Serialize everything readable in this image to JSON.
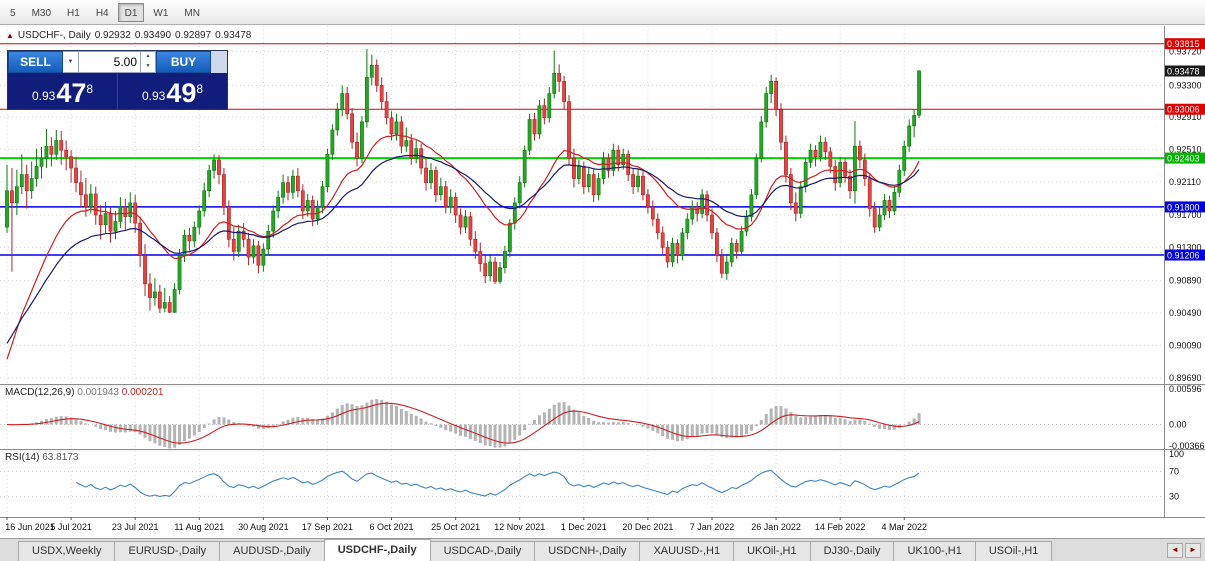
{
  "toolbar": {
    "timeframes": [
      {
        "label": "5",
        "active": false
      },
      {
        "label": "M30",
        "active": false
      },
      {
        "label": "H1",
        "active": false
      },
      {
        "label": "H4",
        "active": false
      },
      {
        "label": "D1",
        "active": true
      },
      {
        "label": "W1",
        "active": false
      },
      {
        "label": "MN",
        "active": false
      }
    ]
  },
  "chart_header": {
    "title": "USDCHF-, Daily",
    "open": "0.92932",
    "high": "0.93490",
    "low": "0.92897",
    "close": "0.93478"
  },
  "trade_panel": {
    "sell_label": "SELL",
    "buy_label": "BUY",
    "volume": "5.00",
    "bid": {
      "small": "0.93",
      "big": "47",
      "sup": "8"
    },
    "ask": {
      "small": "0.93",
      "big": "49",
      "sup": "8"
    }
  },
  "chart_data": {
    "type": "candlestick",
    "symbol": "USDCHF-",
    "timeframe": "Daily",
    "ylim": [
      0.8963,
      0.9398
    ],
    "price_ticks": [
      "0.93720",
      "0.93300",
      "0.92910",
      "0.92510",
      "0.92110",
      "0.91700",
      "0.91300",
      "0.90890",
      "0.90490",
      "0.90090",
      "0.89690"
    ],
    "x_labels": [
      "16 Jun 2021",
      "5 Jul 2021",
      "23 Jul 2021",
      "11 Aug 2021",
      "30 Aug 2021",
      "17 Sep 2021",
      "6 Oct 2021",
      "25 Oct 2021",
      "12 Nov 2021",
      "1 Dec 2021",
      "20 Dec 2021",
      "7 Jan 2022",
      "26 Jan 2022",
      "14 Feb 2022",
      "4 Mar 2022"
    ],
    "x_label_step": 13,
    "hlines": [
      {
        "price": 0.93815,
        "label": "0.93815",
        "color": "#e00000",
        "width": 1
      },
      {
        "price": 0.93006,
        "label": "0.93006",
        "color": "#e00000",
        "width": 1
      },
      {
        "price": 0.92403,
        "label": "0.92403",
        "color": "#00d400",
        "width": 2
      },
      {
        "price": 0.918,
        "label": "0.91800",
        "color": "#0000e8",
        "width": 1.5
      },
      {
        "price": 0.91206,
        "label": "0.91206",
        "color": "#0000e8",
        "width": 1.5
      }
    ],
    "current_price": {
      "value": "0.93478",
      "price": 0.93478,
      "tag_color": "#1a1a1a"
    },
    "moving_averages": [
      {
        "period": 20,
        "color": "#cc2020",
        "seed": 0.897
      },
      {
        "period": 34,
        "color": "#1a1a6e",
        "seed": 0.9
      }
    ],
    "macd": {
      "label": "MACD(12,26,9)",
      "value_main": "0.001943",
      "value_signal": "0.000201",
      "scale": [
        "0.00596",
        "0.00",
        "-0.00366"
      ],
      "range": [
        -0.00366,
        0.00596
      ],
      "hist_color": "#b4b4b4",
      "signal_color": "#cc2020"
    },
    "rsi": {
      "label": "RSI(14)",
      "value": "63.8173",
      "scale": [
        "100",
        "70",
        "30"
      ],
      "levels": [
        70,
        30
      ],
      "color": "#3d85c8"
    },
    "colors": {
      "up_fill": "#28a428",
      "up_stroke": "#0d7a0d",
      "down_fill": "#e04545",
      "down_stroke": "#b22222",
      "grid": "#d8d8d8"
    },
    "candles": [
      [
        0.9155,
        0.9232,
        0.9148,
        0.92
      ],
      [
        0.92,
        0.9228,
        0.91,
        0.9185
      ],
      [
        0.9185,
        0.9226,
        0.917,
        0.9205
      ],
      [
        0.9205,
        0.9245,
        0.9196,
        0.922
      ],
      [
        0.922,
        0.9232,
        0.9178,
        0.92
      ],
      [
        0.92,
        0.9236,
        0.919,
        0.9215
      ],
      [
        0.9215,
        0.9252,
        0.9205,
        0.923
      ],
      [
        0.923,
        0.9254,
        0.9215,
        0.924
      ],
      [
        0.924,
        0.9276,
        0.9228,
        0.9255
      ],
      [
        0.9255,
        0.9266,
        0.923,
        0.9245
      ],
      [
        0.9245,
        0.9275,
        0.9238,
        0.9262
      ],
      [
        0.9262,
        0.9274,
        0.9232,
        0.925
      ],
      [
        0.925,
        0.9262,
        0.9225,
        0.9242
      ],
      [
        0.9242,
        0.925,
        0.921,
        0.9228
      ],
      [
        0.9228,
        0.9242,
        0.9198,
        0.921
      ],
      [
        0.921,
        0.9225,
        0.918,
        0.9195
      ],
      [
        0.9195,
        0.9216,
        0.9168,
        0.918
      ],
      [
        0.918,
        0.9208,
        0.9172,
        0.9196
      ],
      [
        0.9196,
        0.9205,
        0.9158,
        0.917
      ],
      [
        0.917,
        0.9182,
        0.914,
        0.9158
      ],
      [
        0.9158,
        0.9186,
        0.9148,
        0.9172
      ],
      [
        0.9172,
        0.918,
        0.9136,
        0.915
      ],
      [
        0.915,
        0.9175,
        0.914,
        0.9162
      ],
      [
        0.9162,
        0.9192,
        0.9154,
        0.918
      ],
      [
        0.918,
        0.919,
        0.9152,
        0.9168
      ],
      [
        0.9168,
        0.9198,
        0.916,
        0.9185
      ],
      [
        0.9185,
        0.9195,
        0.9148,
        0.916
      ],
      [
        0.916,
        0.9168,
        0.9106,
        0.912
      ],
      [
        0.912,
        0.9134,
        0.907,
        0.9085
      ],
      [
        0.9085,
        0.9098,
        0.9052,
        0.9068
      ],
      [
        0.9068,
        0.9092,
        0.9058,
        0.9075
      ],
      [
        0.9075,
        0.9084,
        0.9049,
        0.9055
      ],
      [
        0.9055,
        0.908,
        0.905,
        0.9062
      ],
      [
        0.9062,
        0.907,
        0.9049,
        0.905
      ],
      [
        0.905,
        0.9086,
        0.9049,
        0.9078
      ],
      [
        0.9078,
        0.9128,
        0.9072,
        0.912
      ],
      [
        0.912,
        0.9152,
        0.9112,
        0.9145
      ],
      [
        0.9145,
        0.9154,
        0.9126,
        0.9138
      ],
      [
        0.9138,
        0.9162,
        0.913,
        0.9155
      ],
      [
        0.9155,
        0.9182,
        0.9146,
        0.9175
      ],
      [
        0.9175,
        0.921,
        0.9168,
        0.92
      ],
      [
        0.92,
        0.9232,
        0.9192,
        0.9225
      ],
      [
        0.9225,
        0.9245,
        0.9215,
        0.9238
      ],
      [
        0.9238,
        0.9244,
        0.9208,
        0.922
      ],
      [
        0.922,
        0.9228,
        0.917,
        0.918
      ],
      [
        0.918,
        0.9188,
        0.913,
        0.914
      ],
      [
        0.914,
        0.9155,
        0.9114,
        0.9125
      ],
      [
        0.9125,
        0.9158,
        0.9118,
        0.915
      ],
      [
        0.915,
        0.916,
        0.913,
        0.914
      ],
      [
        0.914,
        0.9148,
        0.9108,
        0.9118
      ],
      [
        0.9118,
        0.914,
        0.911,
        0.9132
      ],
      [
        0.9132,
        0.9138,
        0.9098,
        0.9108
      ],
      [
        0.9108,
        0.9135,
        0.91,
        0.9128
      ],
      [
        0.9128,
        0.9158,
        0.912,
        0.915
      ],
      [
        0.915,
        0.9182,
        0.9142,
        0.9175
      ],
      [
        0.9175,
        0.92,
        0.9166,
        0.9192
      ],
      [
        0.9192,
        0.922,
        0.9184,
        0.921
      ],
      [
        0.921,
        0.9218,
        0.9188,
        0.9198
      ],
      [
        0.9198,
        0.9226,
        0.919,
        0.9218
      ],
      [
        0.9218,
        0.9228,
        0.9192,
        0.92
      ],
      [
        0.92,
        0.9208,
        0.9165,
        0.9175
      ],
      [
        0.9175,
        0.9196,
        0.9168,
        0.9188
      ],
      [
        0.9188,
        0.9194,
        0.9156,
        0.9165
      ],
      [
        0.9165,
        0.9188,
        0.9158,
        0.918
      ],
      [
        0.918,
        0.9212,
        0.9172,
        0.9205
      ],
      [
        0.9205,
        0.9252,
        0.9198,
        0.9245
      ],
      [
        0.9245,
        0.9282,
        0.9238,
        0.9275
      ],
      [
        0.9275,
        0.9308,
        0.9268,
        0.93
      ],
      [
        0.93,
        0.933,
        0.9292,
        0.932
      ],
      [
        0.932,
        0.9328,
        0.9288,
        0.9295
      ],
      [
        0.9295,
        0.9302,
        0.9252,
        0.926
      ],
      [
        0.926,
        0.9272,
        0.923,
        0.924
      ],
      [
        0.924,
        0.9292,
        0.9234,
        0.9285
      ],
      [
        0.9285,
        0.9375,
        0.9278,
        0.934
      ],
      [
        0.934,
        0.9368,
        0.933,
        0.9355
      ],
      [
        0.9355,
        0.9362,
        0.9322,
        0.933
      ],
      [
        0.933,
        0.934,
        0.93,
        0.931
      ],
      [
        0.931,
        0.9322,
        0.9282,
        0.929
      ],
      [
        0.929,
        0.9298,
        0.9262,
        0.927
      ],
      [
        0.927,
        0.9295,
        0.9262,
        0.9285
      ],
      [
        0.9285,
        0.9292,
        0.9246,
        0.9255
      ],
      [
        0.9255,
        0.9278,
        0.9248,
        0.9262
      ],
      [
        0.9262,
        0.927,
        0.9232,
        0.924
      ],
      [
        0.924,
        0.9262,
        0.9234,
        0.9252
      ],
      [
        0.9252,
        0.9258,
        0.922,
        0.9228
      ],
      [
        0.9228,
        0.924,
        0.92,
        0.921
      ],
      [
        0.921,
        0.9234,
        0.9202,
        0.9225
      ],
      [
        0.9225,
        0.923,
        0.9186,
        0.9195
      ],
      [
        0.9195,
        0.9216,
        0.9188,
        0.9205
      ],
      [
        0.9205,
        0.9212,
        0.9172,
        0.918
      ],
      [
        0.918,
        0.9202,
        0.9172,
        0.9192
      ],
      [
        0.9192,
        0.9198,
        0.916,
        0.917
      ],
      [
        0.917,
        0.9178,
        0.9146,
        0.9155
      ],
      [
        0.9155,
        0.9176,
        0.9148,
        0.9168
      ],
      [
        0.9168,
        0.9174,
        0.9132,
        0.914
      ],
      [
        0.914,
        0.915,
        0.9116,
        0.9125
      ],
      [
        0.9125,
        0.9136,
        0.91,
        0.911
      ],
      [
        0.911,
        0.912,
        0.9086,
        0.9095
      ],
      [
        0.9095,
        0.912,
        0.9088,
        0.9112
      ],
      [
        0.9112,
        0.9118,
        0.9085,
        0.9088
      ],
      [
        0.9088,
        0.9112,
        0.9085,
        0.9105
      ],
      [
        0.9105,
        0.9132,
        0.9098,
        0.9125
      ],
      [
        0.9125,
        0.9165,
        0.9118,
        0.916
      ],
      [
        0.916,
        0.9192,
        0.9152,
        0.9185
      ],
      [
        0.9185,
        0.9218,
        0.9178,
        0.921
      ],
      [
        0.921,
        0.9256,
        0.9204,
        0.925
      ],
      [
        0.925,
        0.9295,
        0.9244,
        0.9288
      ],
      [
        0.9288,
        0.9296,
        0.9262,
        0.927
      ],
      [
        0.927,
        0.9312,
        0.9264,
        0.9305
      ],
      [
        0.9305,
        0.9314,
        0.9282,
        0.929
      ],
      [
        0.929,
        0.9328,
        0.9284,
        0.932
      ],
      [
        0.932,
        0.9373,
        0.9314,
        0.9345
      ],
      [
        0.9345,
        0.9356,
        0.9322,
        0.9335
      ],
      [
        0.9335,
        0.9342,
        0.93,
        0.931
      ],
      [
        0.931,
        0.9318,
        0.9232,
        0.924
      ],
      [
        0.924,
        0.9252,
        0.9204,
        0.9215
      ],
      [
        0.9215,
        0.9238,
        0.9208,
        0.923
      ],
      [
        0.923,
        0.9236,
        0.9196,
        0.9205
      ],
      [
        0.9205,
        0.9228,
        0.9198,
        0.922
      ],
      [
        0.922,
        0.9226,
        0.9186,
        0.9195
      ],
      [
        0.9195,
        0.9222,
        0.9188,
        0.9215
      ],
      [
        0.9215,
        0.9248,
        0.9208,
        0.924
      ],
      [
        0.924,
        0.9246,
        0.9216,
        0.9225
      ],
      [
        0.9225,
        0.9258,
        0.9218,
        0.925
      ],
      [
        0.925,
        0.9256,
        0.9224,
        0.9232
      ],
      [
        0.9232,
        0.9252,
        0.9226,
        0.9245
      ],
      [
        0.9245,
        0.925,
        0.9212,
        0.922
      ],
      [
        0.922,
        0.9228,
        0.9196,
        0.9205
      ],
      [
        0.9205,
        0.9226,
        0.9198,
        0.9218
      ],
      [
        0.9218,
        0.9224,
        0.9188,
        0.9195
      ],
      [
        0.9195,
        0.9202,
        0.9172,
        0.918
      ],
      [
        0.918,
        0.9188,
        0.9156,
        0.9165
      ],
      [
        0.9165,
        0.9172,
        0.914,
        0.9148
      ],
      [
        0.9148,
        0.9156,
        0.9122,
        0.913
      ],
      [
        0.913,
        0.9138,
        0.9105,
        0.9112
      ],
      [
        0.9112,
        0.9142,
        0.9106,
        0.9135
      ],
      [
        0.9135,
        0.914,
        0.911,
        0.912
      ],
      [
        0.912,
        0.9154,
        0.9114,
        0.9148
      ],
      [
        0.9148,
        0.9172,
        0.914,
        0.9165
      ],
      [
        0.9165,
        0.9188,
        0.9158,
        0.918
      ],
      [
        0.918,
        0.9186,
        0.9162,
        0.9172
      ],
      [
        0.9172,
        0.9202,
        0.9166,
        0.9195
      ],
      [
        0.9195,
        0.92,
        0.9162,
        0.917
      ],
      [
        0.917,
        0.9178,
        0.914,
        0.9148
      ],
      [
        0.9148,
        0.9154,
        0.9112,
        0.912
      ],
      [
        0.912,
        0.9128,
        0.9092,
        0.9098
      ],
      [
        0.9098,
        0.912,
        0.909,
        0.9112
      ],
      [
        0.9112,
        0.9142,
        0.9106,
        0.9135
      ],
      [
        0.9135,
        0.914,
        0.9116,
        0.9125
      ],
      [
        0.9125,
        0.9156,
        0.912,
        0.915
      ],
      [
        0.915,
        0.9176,
        0.9144,
        0.9168
      ],
      [
        0.9168,
        0.9202,
        0.9162,
        0.9195
      ],
      [
        0.9195,
        0.9246,
        0.919,
        0.924
      ],
      [
        0.924,
        0.9292,
        0.9235,
        0.9285
      ],
      [
        0.9285,
        0.9328,
        0.9278,
        0.932
      ],
      [
        0.932,
        0.9343,
        0.9308,
        0.9335
      ],
      [
        0.9335,
        0.934,
        0.9292,
        0.93
      ],
      [
        0.93,
        0.9308,
        0.925,
        0.926
      ],
      [
        0.926,
        0.9268,
        0.921,
        0.922
      ],
      [
        0.922,
        0.9228,
        0.9176,
        0.9185
      ],
      [
        0.9185,
        0.9198,
        0.9162,
        0.9172
      ],
      [
        0.9172,
        0.9212,
        0.9166,
        0.9205
      ],
      [
        0.9205,
        0.924,
        0.9198,
        0.9235
      ],
      [
        0.9235,
        0.9258,
        0.9228,
        0.925
      ],
      [
        0.925,
        0.9256,
        0.923,
        0.9242
      ],
      [
        0.9242,
        0.9268,
        0.9236,
        0.926
      ],
      [
        0.926,
        0.9266,
        0.9238,
        0.9248
      ],
      [
        0.9248,
        0.9254,
        0.9222,
        0.923
      ],
      [
        0.923,
        0.9238,
        0.92,
        0.921
      ],
      [
        0.921,
        0.9242,
        0.9204,
        0.9235
      ],
      [
        0.9235,
        0.924,
        0.921,
        0.9218
      ],
      [
        0.9218,
        0.9226,
        0.919,
        0.92
      ],
      [
        0.92,
        0.9286,
        0.9184,
        0.9255
      ],
      [
        0.9255,
        0.9262,
        0.9228,
        0.9238
      ],
      [
        0.9238,
        0.9246,
        0.9206,
        0.9215
      ],
      [
        0.9215,
        0.9222,
        0.9168,
        0.9178
      ],
      [
        0.9178,
        0.9186,
        0.9148,
        0.9155
      ],
      [
        0.9155,
        0.918,
        0.915,
        0.917
      ],
      [
        0.917,
        0.9196,
        0.9164,
        0.9188
      ],
      [
        0.9188,
        0.9194,
        0.9166,
        0.9175
      ],
      [
        0.9175,
        0.9206,
        0.917,
        0.9198
      ],
      [
        0.9198,
        0.9232,
        0.9192,
        0.9225
      ],
      [
        0.9225,
        0.9262,
        0.9218,
        0.9255
      ],
      [
        0.9255,
        0.9288,
        0.9248,
        0.928
      ],
      [
        0.928,
        0.93,
        0.9266,
        0.9293
      ],
      [
        0.92932,
        0.9349,
        0.92897,
        0.93478
      ]
    ]
  },
  "bottom_tabs": [
    {
      "label": "USDX,Weekly",
      "active": false
    },
    {
      "label": "EURUSD-,Daily",
      "active": false
    },
    {
      "label": "AUDUSD-,Daily",
      "active": false
    },
    {
      "label": "USDCHF-,Daily",
      "active": true
    },
    {
      "label": "USDCAD-,Daily",
      "active": false
    },
    {
      "label": "USDCNH-,Daily",
      "active": false
    },
    {
      "label": "XAUUSD-,H1",
      "active": false
    },
    {
      "label": "UKOil-,H1",
      "active": false
    },
    {
      "label": "DJ30-,Daily",
      "active": false
    },
    {
      "label": "UK100-,H1",
      "active": false
    },
    {
      "label": "USOil-,H1",
      "active": false
    }
  ],
  "tab_scroll": {
    "left": "◄",
    "right": "►"
  }
}
